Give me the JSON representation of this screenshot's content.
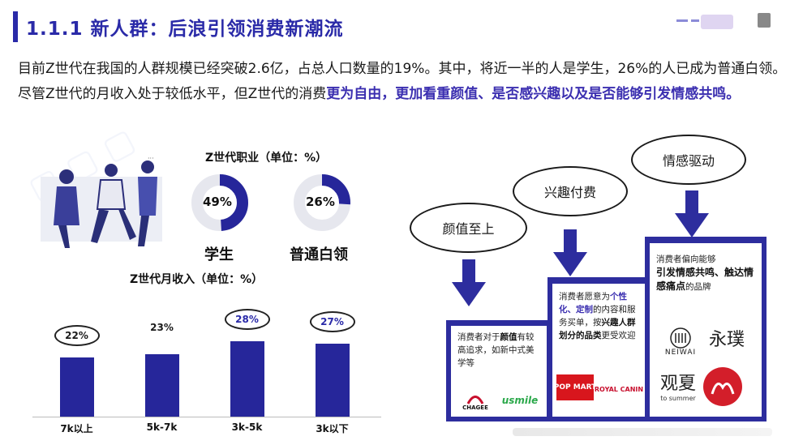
{
  "header": {
    "title": "1.1.1 新人群：后浪引领消费新潮流"
  },
  "intro": {
    "part1": "目前Z世代在我国的人群规模已经突破2.6亿，占总人口数量的19%。其中，将近一半的人是学生，26%的人已成为普通白领。尽管Z世代的月收入处于较低水平，但Z世代的消费",
    "highlight": "更为自由，更加看重颜值、是否感兴趣以及是否能够引发情感共鸣。"
  },
  "occupation": {
    "title": "Z世代职业（单位：%）",
    "items": [
      {
        "label": "学生",
        "value_text": "49%",
        "value": 49
      },
      {
        "label": "普通白领",
        "value_text": "26%",
        "value": 26
      }
    ]
  },
  "chart_data": {
    "type": "bar",
    "title": "Z世代月收入（单位：%）",
    "categories": [
      "7k以上",
      "5k-7k",
      "3k-5k",
      "3k以下"
    ],
    "values": [
      22,
      23,
      28,
      27
    ],
    "value_labels": [
      "22%",
      "23%",
      "28%",
      "27%"
    ],
    "ylim": [
      0,
      30
    ]
  },
  "drivers": {
    "bubbles": [
      "颜值至上",
      "兴趣付费",
      "情感驱动"
    ],
    "card1": {
      "pre": "消费者对于",
      "bold": "颜值",
      "post": "有较高追求，如新中式美学等"
    },
    "card2": {
      "pre": "消费者愿意为",
      "bold1": "个性化、定制",
      "mid": "的内容和服务买单，按",
      "bold2": "兴趣人群划分的品类",
      "post": "更受欢迎"
    },
    "card3": {
      "pre": "消费者偏向能够",
      "bold": "引发情感共鸣、触达情感痛点",
      "post": "的品牌"
    },
    "brands": {
      "chagee": "CHAGEE",
      "usmile": "usmile",
      "popmart": "POP MART",
      "royalcanin": "ROYAL CANIN",
      "neiwai": "NEIWAI",
      "yongpu": "永璞",
      "guanxia": "观夏",
      "guanxia_sub": "to summer"
    }
  },
  "colors": {
    "accent": "#2a2aa8",
    "step": "#2d2d9e",
    "bar": "#26269a",
    "donut_track": "#e6e7ee"
  }
}
